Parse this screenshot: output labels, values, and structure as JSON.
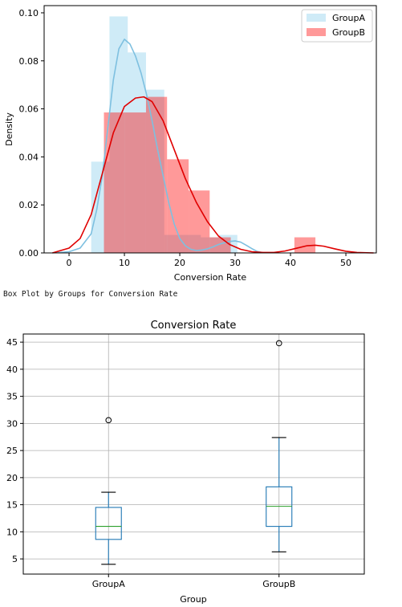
{
  "caption": "Box Plot by Groups for Conversion Rate",
  "chart_data": [
    {
      "type": "histogram",
      "xlabel": "Conversion Rate",
      "ylabel": "Density",
      "xlim": [
        -4.5,
        55.5
      ],
      "ylim": [
        0,
        0.103
      ],
      "xticks": [
        0,
        10,
        20,
        30,
        40,
        50
      ],
      "xtick_labels": [
        "0",
        "10",
        "20",
        "30",
        "40",
        "50"
      ],
      "yticks": [
        0,
        0.02,
        0.04,
        0.06,
        0.08,
        0.1
      ],
      "ytick_labels": [
        "0.00",
        "0.02",
        "0.04",
        "0.06",
        "0.08",
        "0.10"
      ],
      "legend_position": "top-right",
      "series": [
        {
          "name": "GroupA",
          "color": "#87CEEB",
          "bins": [
            {
              "x0": 4.0,
              "x1": 7.3,
              "density": 0.038
            },
            {
              "x0": 7.3,
              "x1": 10.6,
              "density": 0.0985
            },
            {
              "x0": 10.6,
              "x1": 13.9,
              "density": 0.0835
            },
            {
              "x0": 13.9,
              "x1": 17.2,
              "density": 0.068
            },
            {
              "x0": 17.2,
              "x1": 20.5,
              "density": 0.0075
            },
            {
              "x0": 20.5,
              "x1": 23.8,
              "density": 0.0075
            },
            {
              "x0": 23.8,
              "x1": 27.1,
              "density": 0.0065
            },
            {
              "x0": 27.1,
              "x1": 30.4,
              "density": 0.0075
            }
          ],
          "kde": {
            "x": [
              -3,
              0,
              2,
              4,
              5,
              6,
              7,
              8,
              9,
              10,
              11,
              12,
              13,
              14,
              15,
              16,
              17,
              18,
              19,
              20,
              21,
              22,
              23,
              24,
              25,
              26,
              27,
              28,
              29,
              30,
              31,
              32,
              33,
              34,
              35
            ],
            "y": [
              0,
              0.0005,
              0.002,
              0.008,
              0.018,
              0.032,
              0.052,
              0.072,
              0.085,
              0.089,
              0.087,
              0.082,
              0.075,
              0.066,
              0.055,
              0.043,
              0.032,
              0.021,
              0.012,
              0.006,
              0.003,
              0.0015,
              0.001,
              0.0012,
              0.0017,
              0.0025,
              0.0035,
              0.0042,
              0.0048,
              0.005,
              0.0045,
              0.0032,
              0.0018,
              0.0006,
              0.0001
            ]
          }
        },
        {
          "name": "GroupB",
          "color": "#FF0000",
          "bins": [
            {
              "x0": 6.3,
              "x1": 10.1,
              "density": 0.0585
            },
            {
              "x0": 10.1,
              "x1": 13.9,
              "density": 0.0585
            },
            {
              "x0": 13.9,
              "x1": 17.7,
              "density": 0.065
            },
            {
              "x0": 17.7,
              "x1": 21.6,
              "density": 0.039
            },
            {
              "x0": 21.6,
              "x1": 25.4,
              "density": 0.026
            },
            {
              "x0": 25.4,
              "x1": 29.2,
              "density": 0.0065
            },
            {
              "x0": 29.2,
              "x1": 33.1,
              "density": 0
            },
            {
              "x0": 33.1,
              "x1": 36.9,
              "density": 0
            },
            {
              "x0": 36.9,
              "x1": 40.7,
              "density": 0
            },
            {
              "x0": 40.7,
              "x1": 44.5,
              "density": 0.0065
            }
          ],
          "kde": {
            "x": [
              -3,
              0,
              2,
              4,
              6,
              8,
              10,
              12,
              13.5,
              15,
              17,
              19,
              21,
              23,
              25,
              27,
              29,
              31,
              33,
              35,
              37,
              39,
              41,
              43,
              44.5,
              46,
              48,
              50,
              52,
              55
            ],
            "y": [
              0,
              0.002,
              0.006,
              0.016,
              0.033,
              0.05,
              0.061,
              0.0645,
              0.065,
              0.063,
              0.055,
              0.043,
              0.031,
              0.021,
              0.013,
              0.007,
              0.0035,
              0.0015,
              0.0005,
              0.0002,
              0.0002,
              0.0008,
              0.0019,
              0.003,
              0.0032,
              0.0028,
              0.0017,
              0.0007,
              0.0002,
              0
            ]
          }
        }
      ]
    },
    {
      "type": "box",
      "title": "Conversion Rate",
      "xlabel": "Group",
      "ylabel": "",
      "ylim": [
        2.2,
        46.5
      ],
      "grid": true,
      "yticks": [
        5,
        10,
        15,
        20,
        25,
        30,
        35,
        40,
        45
      ],
      "ytick_labels": [
        "5",
        "10",
        "15",
        "20",
        "25",
        "30",
        "35",
        "40",
        "45"
      ],
      "categories": [
        "GroupA",
        "GroupB"
      ],
      "box_color": "#1f77b4",
      "median_color": "#2ca02c",
      "boxes": [
        {
          "whisker_low": 4.0,
          "q1": 8.6,
          "median": 11.0,
          "q3": 14.5,
          "whisker_high": 17.3,
          "outliers": [
            30.6
          ]
        },
        {
          "whisker_low": 6.3,
          "q1": 11.0,
          "median": 14.7,
          "q3": 18.3,
          "whisker_high": 27.4,
          "outliers": [
            44.8
          ]
        }
      ]
    }
  ]
}
